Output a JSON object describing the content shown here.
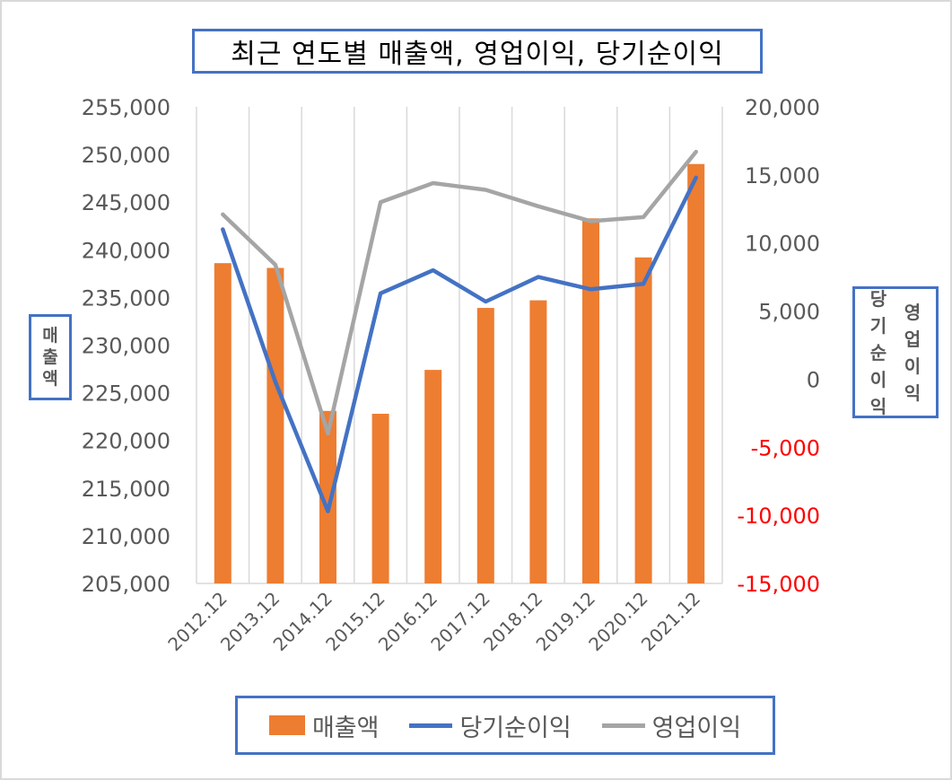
{
  "chart_data": {
    "type": "bar+line",
    "title": "최근 연도별 매출액, 영업이익, 당기순이익",
    "categories": [
      "2012.12",
      "2013.12",
      "2014.12",
      "2015.12",
      "2016.12",
      "2017.12",
      "2018.12",
      "2019.12",
      "2020.12",
      "2021.12"
    ],
    "series": [
      {
        "name": "매출액",
        "type": "bar",
        "axis": "left",
        "color": "#ed7d31",
        "values": [
          238600,
          238100,
          223100,
          222800,
          227400,
          233900,
          234700,
          243300,
          239200,
          249000
        ]
      },
      {
        "name": "당기순이익",
        "type": "line",
        "axis": "right",
        "color": "#4472c4",
        "values": [
          11000,
          -200,
          -9700,
          6300,
          8000,
          5700,
          7500,
          6600,
          7000,
          14800
        ]
      },
      {
        "name": "영업이익",
        "type": "line",
        "axis": "right",
        "color": "#a5a5a5",
        "values": [
          12100,
          8400,
          -4000,
          13000,
          14400,
          13900,
          12700,
          11600,
          11900,
          16700
        ]
      }
    ],
    "y_left": {
      "label": "매출액",
      "ylim": [
        205000,
        255000
      ],
      "ticks": [
        "205,000",
        "210,000",
        "215,000",
        "220,000",
        "225,000",
        "230,000",
        "235,000",
        "240,000",
        "245,000",
        "250,000",
        "255,000"
      ]
    },
    "y_right": {
      "label_lines": [
        "영업이익",
        "당기순이익"
      ],
      "ylim": [
        -15000,
        20000
      ],
      "ticks": [
        "-15,000",
        "-10,000",
        "-5,000",
        "0",
        "5,000",
        "10,000",
        "15,000",
        "20,000"
      ],
      "negative_color": "#ff0000"
    },
    "grid": "vertical",
    "legend": "bottom"
  }
}
